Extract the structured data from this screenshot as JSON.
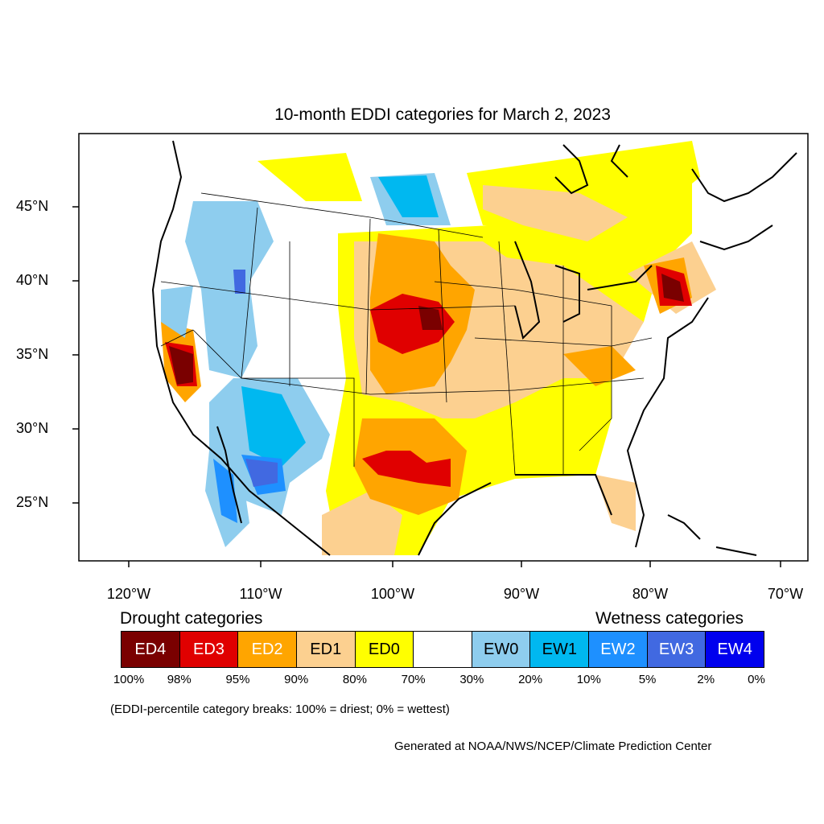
{
  "title": "10-month EDDI categories for March 2, 2023",
  "lat_labels": [
    "45°N",
    "40°N",
    "35°N",
    "30°N",
    "25°N"
  ],
  "lon_labels": [
    "120°W",
    "110°W",
    "100°W",
    "90°W",
    "80°W",
    "70°W"
  ],
  "legend": {
    "drought_heading": "Drought categories",
    "wetness_heading": "Wetness categories",
    "categories": [
      {
        "label": "ED4",
        "color": "#7a0000",
        "text_color": "#ffffff"
      },
      {
        "label": "ED3",
        "color": "#e00000",
        "text_color": "#ffffff"
      },
      {
        "label": "ED2",
        "color": "#ffa500",
        "text_color": "#ffffff"
      },
      {
        "label": "ED1",
        "color": "#fcd090",
        "text_color": "#000000"
      },
      {
        "label": "ED0",
        "color": "#ffff00",
        "text_color": "#000000"
      },
      {
        "label": "",
        "color": "#ffffff",
        "text_color": "#000000"
      },
      {
        "label": "EW0",
        "color": "#8ecdee",
        "text_color": "#000000"
      },
      {
        "label": "EW1",
        "color": "#00b8f0",
        "text_color": "#000000"
      },
      {
        "label": "EW2",
        "color": "#1e90ff",
        "text_color": "#ffffff"
      },
      {
        "label": "EW3",
        "color": "#4169e1",
        "text_color": "#ffffff"
      },
      {
        "label": "EW4",
        "color": "#0000ee",
        "text_color": "#ffffff"
      }
    ],
    "percent_breaks": [
      "100%",
      "98%",
      "95%",
      "90%",
      "80%",
      "70%",
      "30%",
      "20%",
      "10%",
      "5%",
      "2%",
      "0%"
    ]
  },
  "note": "(EDDI-percentile category breaks: 100% = driest; 0% = wettest)",
  "credit": "Generated at NOAA/NWS/NCEP/Climate Prediction Center"
}
